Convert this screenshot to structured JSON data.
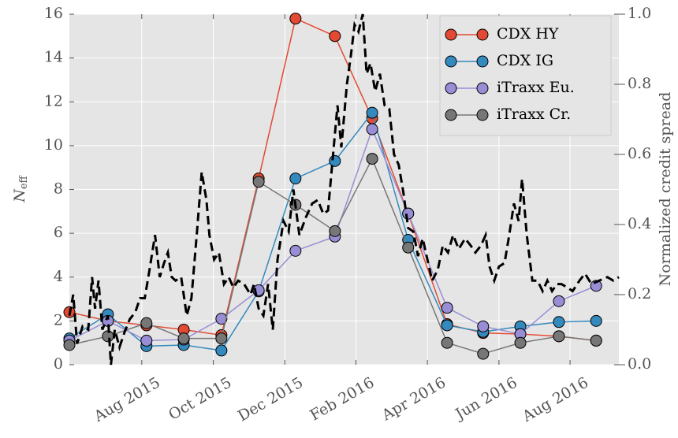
{
  "chart_data": {
    "type": "line",
    "ylabel": "N",
    "ylabel_sub": "eff",
    "y2label": "Normalized credit spread",
    "x": [
      2015.414,
      2015.504,
      2015.594,
      2015.681,
      2015.769,
      2015.856,
      2015.942,
      2016.034,
      2016.121,
      2016.205,
      2016.296,
      2016.38,
      2016.467,
      2016.557,
      2016.644
    ],
    "xlim": [
      2015.414,
      2016.697
    ],
    "xticks": [
      {
        "value": 2015.583,
        "label": "Aug 2015"
      },
      {
        "value": 2015.75,
        "label": "Oct 2015"
      },
      {
        "value": 2015.917,
        "label": "Dec 2015"
      },
      {
        "value": 2016.083,
        "label": "Feb 2016"
      },
      {
        "value": 2016.25,
        "label": "Apr 2016"
      },
      {
        "value": 2016.417,
        "label": "Jun 2016"
      },
      {
        "value": 2016.583,
        "label": "Aug 2016"
      }
    ],
    "ylim": [
      0,
      16
    ],
    "yticks": [
      0,
      2,
      4,
      6,
      8,
      10,
      12,
      14,
      16
    ],
    "y2lim": [
      0,
      1
    ],
    "y2ticks": [
      {
        "value": 0,
        "label": "0.0"
      },
      0.2,
      0.4,
      0.6,
      0.8,
      {
        "value": 1,
        "label": "1.0"
      }
    ],
    "grid": true,
    "legend": "upper right",
    "series": [
      {
        "name": "CDX HY",
        "color": "#e24a33",
        "values": [
          2.4,
          2.0,
          1.8,
          1.6,
          1.35,
          8.5,
          15.8,
          15.0,
          11.25,
          6.9,
          1.85,
          1.45,
          1.4,
          1.3,
          1.1
        ]
      },
      {
        "name": "CDX IG",
        "color": "#348abd",
        "values": [
          1.2,
          2.3,
          0.85,
          0.9,
          0.65,
          3.35,
          8.5,
          9.3,
          11.5,
          5.7,
          1.8,
          1.5,
          1.75,
          1.95,
          2.0
        ]
      },
      {
        "name": "iTraxx Eu.",
        "color": "#988ed5",
        "values": [
          1.1,
          2.0,
          1.1,
          1.15,
          2.1,
          3.4,
          5.2,
          5.85,
          10.75,
          6.9,
          2.6,
          1.75,
          1.4,
          2.9,
          3.6
        ]
      },
      {
        "name": "iTraxx Cr.",
        "color": "#777777",
        "values": [
          0.9,
          1.3,
          1.9,
          1.2,
          1.2,
          8.35,
          7.3,
          6.1,
          9.4,
          5.35,
          1.0,
          0.5,
          1.0,
          1.3,
          1.1
        ]
      },
      {
        "color": "#000000",
        "axis": "y2",
        "style": "dashed",
        "x": [
          2015.414,
          2015.423,
          2015.432,
          2015.445,
          2015.458,
          2015.467,
          2015.474,
          2015.482,
          2015.491,
          2015.504,
          2015.511,
          2015.52,
          2015.531,
          2015.542,
          2015.555,
          2015.568,
          2015.579,
          2015.59,
          2015.601,
          2015.614,
          2015.625,
          2015.635,
          2015.644,
          2015.653,
          2015.662,
          2015.675,
          2015.688,
          2015.699,
          2015.712,
          2015.723,
          2015.734,
          2015.741,
          2015.752,
          2015.763,
          2015.775,
          2015.786,
          2015.797,
          2015.808,
          2015.822,
          2015.837,
          2015.845,
          2015.856,
          2015.867,
          2015.878,
          2015.889,
          2015.9,
          2015.914,
          2015.926,
          2015.937,
          2015.951,
          2015.966,
          2015.981,
          2015.994,
          2016.007,
          2016.018,
          2016.029,
          2016.04,
          2016.049,
          2016.062,
          2016.071,
          2016.08,
          2016.089,
          2016.099,
          2016.108,
          2016.117,
          2016.128,
          2016.139,
          2016.15,
          2016.161,
          2016.172,
          2016.183,
          2016.194,
          2016.205,
          2016.217,
          2016.228,
          2016.239,
          2016.25,
          2016.261,
          2016.274,
          2016.286,
          2016.298,
          2016.31,
          2016.323,
          2016.338,
          2016.351,
          2016.362,
          2016.375,
          2016.386,
          2016.395,
          2016.406,
          2016.417,
          2016.43,
          2016.441,
          2016.452,
          2016.463,
          2016.471,
          2016.482,
          2016.495,
          2016.507,
          2016.519,
          2016.53,
          2016.541,
          2016.552,
          2016.563,
          2016.577,
          2016.589,
          2016.605,
          2016.618,
          2016.633,
          2016.651,
          2016.67,
          2016.684,
          2016.697
        ],
        "values": [
          0.14,
          0.2,
          0.06,
          0.11,
          0.1,
          0.25,
          0.16,
          0.24,
          0.1,
          0.14,
          0.0,
          0.1,
          0.05,
          0.09,
          0.13,
          0.15,
          0.19,
          0.19,
          0.27,
          0.37,
          0.25,
          0.29,
          0.32,
          0.25,
          0.24,
          0.25,
          0.14,
          0.19,
          0.38,
          0.55,
          0.47,
          0.37,
          0.3,
          0.32,
          0.23,
          0.25,
          0.22,
          0.24,
          0.23,
          0.2,
          0.23,
          0.16,
          0.14,
          0.23,
          0.1,
          0.3,
          0.41,
          0.38,
          0.5,
          0.37,
          0.42,
          0.46,
          0.47,
          0.43,
          0.44,
          0.59,
          0.74,
          0.62,
          0.8,
          0.88,
          0.97,
          0.95,
          1.0,
          0.83,
          0.86,
          0.78,
          0.83,
          0.74,
          0.73,
          0.6,
          0.57,
          0.49,
          0.39,
          0.38,
          0.31,
          0.36,
          0.3,
          0.24,
          0.27,
          0.34,
          0.32,
          0.37,
          0.33,
          0.36,
          0.34,
          0.32,
          0.34,
          0.37,
          0.28,
          0.24,
          0.28,
          0.29,
          0.37,
          0.46,
          0.41,
          0.53,
          0.37,
          0.24,
          0.24,
          0.21,
          0.24,
          0.21,
          0.23,
          0.23,
          0.22,
          0.21,
          0.24,
          0.26,
          0.23,
          0.24,
          0.25,
          0.24,
          0.25
        ]
      }
    ]
  }
}
